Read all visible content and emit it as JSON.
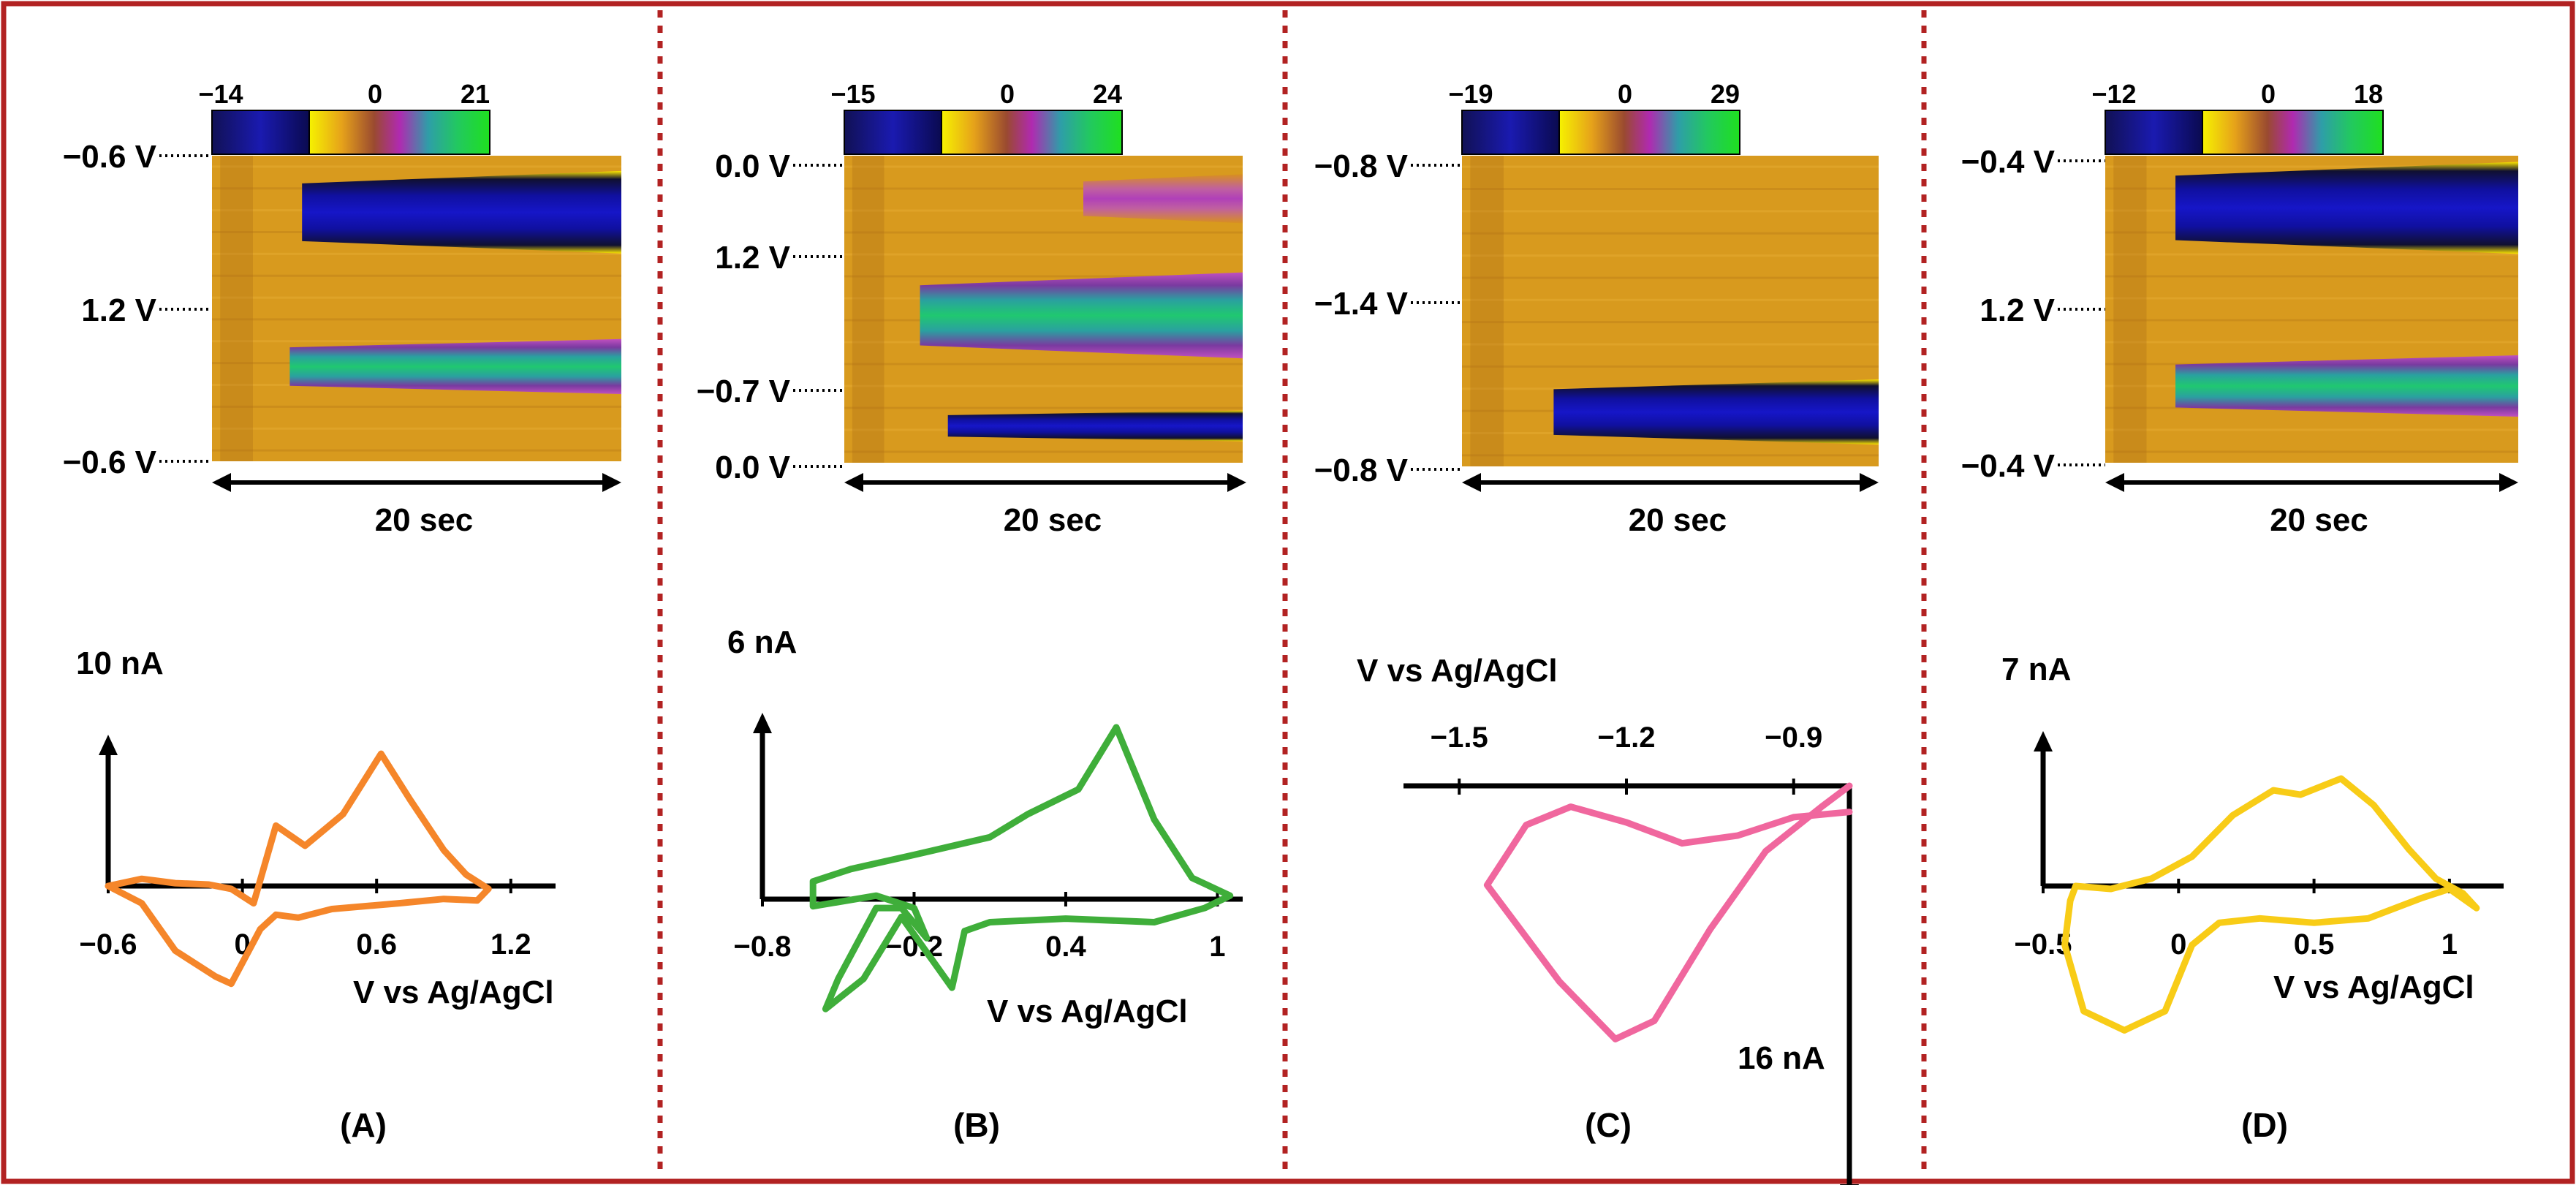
{
  "colors": {
    "frame": "#b22222",
    "panel_a_cv": "#f5862a",
    "panel_b_cv": "#3fae3a",
    "panel_c_cv": "#f0679e",
    "panel_d_cv": "#f8cc17",
    "heatmap_background": "#d89a1e",
    "colorbar_negative": "#1414a0",
    "colorbar_positive": "#1fd61f"
  },
  "chart_data": [
    {
      "id": "A",
      "type": "heatmap",
      "panel_label": "(A)",
      "colorbar": {
        "min_label": "−14",
        "zero_label": "0",
        "max_label": "21",
        "min": -14,
        "max": 21
      },
      "y_labels": [
        "−0.6 V",
        "1.2 V",
        "−0.6 V"
      ],
      "time_label": "20 sec",
      "bands": [
        {
          "sign": "negative",
          "y_from": 0.05,
          "y_to": 0.32,
          "start": 0.22
        },
        {
          "sign": "positive",
          "y_from": 0.6,
          "y_to": 0.78,
          "start": 0.19
        }
      ],
      "cv": {
        "type": "line",
        "current_scale": "10 nA",
        "xlabel": "V vs Ag/AgCl",
        "x_ticks": [
          "−0.6",
          "0",
          "0.6",
          "1.2"
        ],
        "xlim": [
          -0.6,
          1.4
        ],
        "ylim": [
          -1.0,
          1.0
        ],
        "points": [
          [
            -0.6,
            0.0
          ],
          [
            -0.45,
            0.05
          ],
          [
            -0.3,
            0.02
          ],
          [
            -0.15,
            0.01
          ],
          [
            -0.05,
            -0.02
          ],
          [
            0.05,
            -0.12
          ],
          [
            0.15,
            0.42
          ],
          [
            0.28,
            0.28
          ],
          [
            0.45,
            0.5
          ],
          [
            0.62,
            0.92
          ],
          [
            0.75,
            0.6
          ],
          [
            0.9,
            0.25
          ],
          [
            1.0,
            0.08
          ],
          [
            1.1,
            -0.02
          ],
          [
            1.05,
            -0.1
          ],
          [
            0.9,
            -0.09
          ],
          [
            0.7,
            -0.12
          ],
          [
            0.4,
            -0.16
          ],
          [
            0.25,
            -0.22
          ],
          [
            0.15,
            -0.2
          ],
          [
            0.08,
            -0.3
          ],
          [
            -0.05,
            -0.68
          ],
          [
            -0.12,
            -0.63
          ],
          [
            -0.3,
            -0.45
          ],
          [
            -0.45,
            -0.12
          ],
          [
            -0.6,
            0.0
          ]
        ]
      }
    },
    {
      "id": "B",
      "type": "heatmap",
      "panel_label": "(B)",
      "colorbar": {
        "min_label": "−15",
        "zero_label": "0",
        "max_label": "24",
        "min": -15,
        "max": 24
      },
      "y_labels": [
        "0.0 V",
        "1.2 V",
        "−0.7 V",
        "0.0 V"
      ],
      "time_label": "20 sec",
      "bands": [
        {
          "sign": "positive_weak",
          "y_from": 0.06,
          "y_to": 0.22,
          "start": 0.6
        },
        {
          "sign": "positive",
          "y_from": 0.38,
          "y_to": 0.66,
          "start": 0.19
        },
        {
          "sign": "negative",
          "y_from": 0.83,
          "y_to": 0.93,
          "start": 0.26
        }
      ],
      "cv": {
        "type": "line",
        "current_scale": "6 nA",
        "xlabel": "V vs Ag/AgCl",
        "x_ticks": [
          "−0.8",
          "−0.2",
          "0.4",
          "1"
        ],
        "xlim": [
          -0.8,
          1.1
        ],
        "ylim": [
          -1.0,
          1.0
        ],
        "points": [
          [
            -0.55,
            -0.62
          ],
          [
            -0.5,
            -0.45
          ],
          [
            -0.35,
            -0.05
          ],
          [
            -0.25,
            -0.05
          ],
          [
            -0.15,
            -0.22
          ],
          [
            -0.2,
            -0.05
          ],
          [
            -0.35,
            0.02
          ],
          [
            -0.6,
            -0.04
          ],
          [
            -0.6,
            0.1
          ],
          [
            -0.45,
            0.17
          ],
          [
            -0.2,
            0.25
          ],
          [
            0.1,
            0.35
          ],
          [
            0.25,
            0.48
          ],
          [
            0.45,
            0.62
          ],
          [
            0.6,
            0.97
          ],
          [
            0.75,
            0.45
          ],
          [
            0.9,
            0.12
          ],
          [
            1.05,
            0.02
          ],
          [
            0.95,
            -0.05
          ],
          [
            0.75,
            -0.13
          ],
          [
            0.4,
            -0.11
          ],
          [
            0.1,
            -0.13
          ],
          [
            0.0,
            -0.18
          ],
          [
            -0.05,
            -0.5
          ],
          [
            -0.25,
            -0.1
          ],
          [
            -0.4,
            -0.45
          ],
          [
            -0.55,
            -0.62
          ]
        ]
      }
    },
    {
      "id": "C",
      "type": "heatmap",
      "panel_label": "(C)",
      "colorbar": {
        "min_label": "−19",
        "zero_label": "0",
        "max_label": "29",
        "min": -19,
        "max": 29
      },
      "y_labels": [
        "−0.8 V",
        "−1.4 V",
        "−0.8 V"
      ],
      "time_label": "20 sec",
      "bands": [
        {
          "sign": "negative",
          "y_from": 0.72,
          "y_to": 0.93,
          "start": 0.22
        }
      ],
      "cv": {
        "type": "line",
        "current_scale": "16 nA",
        "xlabel": "V vs Ag/AgCl",
        "x_ticks": [
          "−1.5",
          "−1.2",
          "−0.9"
        ],
        "xlim": [
          -1.6,
          -0.8
        ],
        "ylim": [
          -1.2,
          0.2
        ],
        "points": [
          [
            -0.8,
            0.0
          ],
          [
            -0.85,
            -0.08
          ],
          [
            -0.95,
            -0.25
          ],
          [
            -1.05,
            -0.55
          ],
          [
            -1.15,
            -0.9
          ],
          [
            -1.22,
            -0.97
          ],
          [
            -1.32,
            -0.75
          ],
          [
            -1.45,
            -0.38
          ],
          [
            -1.38,
            -0.15
          ],
          [
            -1.3,
            -0.08
          ],
          [
            -1.2,
            -0.14
          ],
          [
            -1.1,
            -0.22
          ],
          [
            -1.0,
            -0.19
          ],
          [
            -0.9,
            -0.12
          ],
          [
            -0.8,
            -0.1
          ]
        ]
      }
    },
    {
      "id": "D",
      "type": "heatmap",
      "panel_label": "(D)",
      "colorbar": {
        "min_label": "−12",
        "zero_label": "0",
        "max_label": "18",
        "min": -12,
        "max": 18
      },
      "y_labels": [
        "−0.4 V",
        "1.2 V",
        "−0.4 V"
      ],
      "time_label": "20 sec",
      "bands": [
        {
          "sign": "negative",
          "y_from": 0.02,
          "y_to": 0.32,
          "start": 0.17
        },
        {
          "sign": "positive",
          "y_from": 0.65,
          "y_to": 0.85,
          "start": 0.17
        }
      ],
      "cv": {
        "type": "line",
        "current_scale": "7 nA",
        "xlabel": "V vs Ag/AgCl",
        "x_ticks": [
          "−0.5",
          "0",
          "0.5",
          "1"
        ],
        "xlim": [
          -0.5,
          1.2
        ],
        "ylim": [
          -1.0,
          1.0
        ],
        "points": [
          [
            -0.38,
            0.0
          ],
          [
            -0.25,
            -0.02
          ],
          [
            -0.1,
            0.05
          ],
          [
            0.05,
            0.2
          ],
          [
            0.2,
            0.48
          ],
          [
            0.35,
            0.65
          ],
          [
            0.45,
            0.62
          ],
          [
            0.6,
            0.73
          ],
          [
            0.72,
            0.55
          ],
          [
            0.85,
            0.25
          ],
          [
            0.95,
            0.05
          ],
          [
            1.05,
            -0.05
          ],
          [
            1.1,
            -0.15
          ],
          [
            1.0,
            -0.02
          ],
          [
            0.9,
            -0.08
          ],
          [
            0.7,
            -0.22
          ],
          [
            0.5,
            -0.25
          ],
          [
            0.3,
            -0.22
          ],
          [
            0.15,
            -0.25
          ],
          [
            0.05,
            -0.4
          ],
          [
            -0.05,
            -0.85
          ],
          [
            -0.2,
            -0.98
          ],
          [
            -0.35,
            -0.85
          ],
          [
            -0.42,
            -0.4
          ],
          [
            -0.4,
            -0.1
          ],
          [
            -0.38,
            0.0
          ]
        ]
      }
    }
  ]
}
